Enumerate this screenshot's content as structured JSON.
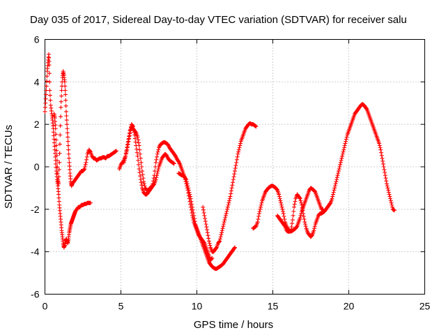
{
  "chart_data": {
    "type": "scatter",
    "title": "Day 035 of 2017, Sidereal Day-to-day VTEC variation (SDTVAR) for receiver salu",
    "xlabel": "GPS time / hours",
    "ylabel": "SDTVAR / TECUs",
    "xlim": [
      0,
      25
    ],
    "ylim": [
      -6,
      6
    ],
    "xticks": [
      0,
      5,
      10,
      15,
      20,
      25
    ],
    "yticks": [
      -6,
      -4,
      -2,
      0,
      2,
      4,
      6
    ],
    "grid": true,
    "marker": "plus",
    "color": "#ff0000",
    "series": [
      {
        "name": "SDTVAR",
        "x": [
          0.0,
          0.05,
          0.1,
          0.15,
          0.2,
          0.25,
          0.28,
          0.32,
          0.38,
          0.45,
          0.5,
          0.55,
          0.6,
          0.65,
          0.7,
          0.75,
          0.8,
          0.85,
          0.9,
          0.95,
          1.0,
          1.05,
          1.1,
          1.15,
          1.2,
          1.25,
          1.3,
          1.35,
          1.4,
          1.45,
          1.5,
          1.55,
          1.6,
          1.65,
          1.7,
          1.75,
          1.8,
          1.85,
          1.9,
          1.95,
          2.0,
          2.1,
          2.2,
          2.3,
          2.4,
          2.5,
          2.6,
          2.7,
          2.8,
          2.9,
          3.0
        ],
        "y": [
          2.6,
          3.2,
          3.8,
          4.5,
          4.9,
          5.3,
          4.8,
          3.6,
          2.9,
          2.5,
          2.2,
          1.8,
          1.3,
          0.8,
          0.3,
          -0.2,
          -0.6,
          -0.9,
          -1.3,
          -1.8,
          -2.2,
          -2.6,
          -3.0,
          -3.3,
          -3.6,
          -3.8,
          -3.7,
          -3.5,
          -3.4,
          -3.5,
          -3.6,
          -3.4,
          -3.1,
          -2.9,
          -2.7,
          -2.6,
          -2.5,
          -2.4,
          -2.3,
          -2.2,
          -2.1,
          -2.0,
          -1.9,
          -1.9,
          -1.8,
          -1.8,
          -1.75,
          -1.75,
          -1.7,
          -1.7,
          -1.7
        ]
      },
      {
        "name": "SDTVAR",
        "x": [
          0.6,
          0.65,
          0.7,
          0.75,
          0.8,
          0.85,
          0.9,
          0.95,
          1.0,
          1.05,
          1.1,
          1.15,
          1.2,
          1.25,
          1.3,
          1.35,
          1.4,
          1.45,
          1.5,
          1.55,
          1.6,
          1.65,
          1.7,
          1.75,
          1.8,
          1.9,
          2.0,
          2.1,
          2.2,
          2.3,
          2.4,
          2.5,
          2.6,
          2.7,
          2.8,
          2.9,
          3.0,
          3.1,
          3.2,
          3.3,
          3.4,
          3.5,
          3.6,
          3.7,
          3.8,
          3.9,
          4.0,
          4.1,
          4.2,
          4.3,
          4.4,
          4.5,
          4.6,
          4.7
        ],
        "y": [
          2.5,
          2.3,
          1.8,
          1.0,
          0.3,
          -0.6,
          -0.8,
          0.2,
          1.5,
          2.8,
          3.6,
          4.2,
          4.5,
          4.3,
          4.0,
          3.4,
          2.6,
          2.0,
          1.4,
          0.8,
          0.2,
          -0.3,
          -0.7,
          -0.9,
          -0.8,
          -0.7,
          -0.6,
          -0.5,
          -0.4,
          -0.3,
          -0.2,
          -0.2,
          -0.1,
          0.2,
          0.6,
          0.8,
          0.7,
          0.5,
          0.4,
          0.4,
          0.3,
          0.35,
          0.4,
          0.4,
          0.45,
          0.45,
          0.4,
          0.5,
          0.5,
          0.55,
          0.6,
          0.65,
          0.7,
          0.75
        ]
      },
      {
        "name": "SDTVAR",
        "x": [
          4.9,
          5.0,
          5.1,
          5.2,
          5.3,
          5.4,
          5.5,
          5.6,
          5.7,
          5.8,
          5.9,
          6.0,
          6.1,
          6.2,
          6.3,
          6.4,
          6.5,
          6.6,
          6.7,
          6.8,
          6.9,
          7.0,
          7.1,
          7.2,
          7.3,
          7.4,
          7.5,
          7.6,
          7.7,
          7.8,
          7.9,
          8.0,
          8.1,
          8.2,
          8.3,
          8.4,
          8.5,
          8.6,
          8.7,
          8.8,
          8.9,
          9.0,
          9.1,
          9.2,
          9.3,
          9.4,
          9.5,
          9.6,
          9.7,
          9.8,
          9.9,
          10.0,
          10.1,
          10.2,
          10.3,
          10.4,
          10.5,
          10.6,
          10.7,
          10.8,
          10.9,
          11.0
        ],
        "y": [
          -0.1,
          0.1,
          0.2,
          0.3,
          0.5,
          0.8,
          1.2,
          1.6,
          2.0,
          1.9,
          1.5,
          1.0,
          0.5,
          -0.1,
          -0.6,
          -1.0,
          -1.2,
          -1.3,
          -1.3,
          -1.2,
          -1.1,
          -1.0,
          -0.8,
          -0.4,
          0.2,
          0.6,
          0.9,
          1.05,
          1.1,
          1.15,
          1.15,
          1.1,
          1.05,
          0.9,
          0.8,
          0.7,
          0.6,
          0.5,
          0.35,
          0.25,
          0.1,
          -0.1,
          -0.3,
          -0.5,
          -0.8,
          -1.1,
          -1.5,
          -1.9,
          -2.3,
          -2.6,
          -2.8,
          -3.0,
          -3.2,
          -3.3,
          -3.4,
          -3.5,
          -3.6,
          -3.8,
          -4.0,
          -4.2,
          -4.4,
          -4.3
        ]
      },
      {
        "name": "SDTVAR",
        "x": [
          5.2,
          5.3,
          5.4,
          5.5,
          5.6,
          5.7,
          5.8,
          5.9,
          6.0,
          6.1,
          6.2,
          6.3,
          6.4,
          6.5,
          6.6,
          6.7,
          6.8,
          6.9,
          7.0,
          7.1,
          7.2,
          7.3,
          7.4,
          7.5,
          7.6,
          7.7,
          7.8,
          7.9,
          8.0,
          8.1,
          8.2,
          8.3,
          8.4,
          8.5
        ],
        "y": [
          0.2,
          0.5,
          0.9,
          1.3,
          1.7,
          1.9,
          1.8,
          1.7,
          1.6,
          1.4,
          1.0,
          0.4,
          -0.2,
          -0.7,
          -1.0,
          -1.1,
          -1.1,
          -1.0,
          -1.0,
          -0.9,
          -0.8,
          -0.6,
          -0.3,
          0.0,
          0.2,
          0.4,
          0.5,
          0.6,
          0.55,
          0.4,
          0.3,
          0.25,
          0.2,
          0.15
        ]
      },
      {
        "name": "SDTVAR",
        "x": [
          8.8,
          8.9,
          9.0,
          9.1,
          9.2,
          9.3,
          9.4,
          9.5,
          9.6,
          9.7,
          9.8,
          9.9,
          10.0,
          10.1,
          10.2,
          10.3,
          10.4,
          10.5,
          10.6,
          10.7,
          10.8,
          10.9,
          11.0,
          11.1,
          11.2,
          11.3,
          11.4,
          11.5,
          11.6,
          11.7,
          11.8,
          11.9,
          12.0,
          12.1,
          12.2,
          12.3,
          12.4,
          12.5
        ],
        "y": [
          -0.3,
          -0.35,
          -0.4,
          -0.4,
          -0.5,
          -0.6,
          -0.9,
          -1.2,
          -1.5,
          -1.9,
          -2.3,
          -2.7,
          -2.9,
          -3.1,
          -3.3,
          -3.5,
          -3.7,
          -3.9,
          -4.1,
          -4.3,
          -4.5,
          -4.6,
          -4.7,
          -4.75,
          -4.8,
          -4.8,
          -4.75,
          -4.7,
          -4.65,
          -4.6,
          -4.5,
          -4.4,
          -4.3,
          -4.2,
          -4.1,
          -4.0,
          -3.9,
          -3.8
        ]
      },
      {
        "name": "SDTVAR",
        "x": [
          10.4,
          10.5,
          10.6,
          10.7,
          10.8,
          10.9,
          11.0,
          11.1,
          11.2,
          11.3,
          11.4,
          11.5,
          11.6,
          11.7,
          11.8,
          11.9,
          12.0,
          12.1,
          12.2,
          12.3,
          12.4,
          12.5,
          12.6,
          12.7,
          12.8,
          12.9,
          13.0,
          13.1,
          13.2,
          13.3,
          13.4,
          13.5,
          13.6,
          13.7,
          13.8,
          13.9
        ],
        "y": [
          -1.9,
          -2.3,
          -2.7,
          -3.1,
          -3.5,
          -3.8,
          -4.0,
          -4.0,
          -3.9,
          -3.8,
          -3.6,
          -3.5,
          -3.2,
          -2.9,
          -2.6,
          -2.3,
          -2.0,
          -1.7,
          -1.4,
          -1.0,
          -0.6,
          -0.2,
          0.2,
          0.6,
          0.9,
          1.2,
          1.4,
          1.6,
          1.8,
          1.9,
          2.0,
          2.05,
          2.0,
          2.0,
          1.95,
          1.9
        ]
      },
      {
        "name": "SDTVAR",
        "x": [
          13.7,
          13.8,
          13.9,
          14.0,
          14.1,
          14.2,
          14.3,
          14.4,
          14.5,
          14.6,
          14.7,
          14.8,
          14.9,
          15.0,
          15.1,
          15.2,
          15.3,
          15.4,
          15.5,
          15.6,
          15.7,
          15.8,
          15.9,
          16.0,
          16.1,
          16.2,
          16.3,
          16.4,
          16.5,
          16.6,
          16.7,
          16.8,
          16.9,
          17.0,
          17.1,
          17.2,
          17.3,
          17.4,
          17.5,
          17.6,
          17.7,
          17.8,
          17.9,
          18.0,
          18.1,
          18.2,
          18.3
        ],
        "y": [
          -2.9,
          -2.85,
          -2.8,
          -2.6,
          -2.2,
          -1.9,
          -1.6,
          -1.4,
          -1.2,
          -1.1,
          -1.0,
          -0.95,
          -0.9,
          -0.9,
          -0.95,
          -1.0,
          -1.1,
          -1.3,
          -1.6,
          -1.9,
          -2.2,
          -2.6,
          -2.8,
          -2.95,
          -3.0,
          -3.05,
          -3.0,
          -2.95,
          -2.9,
          -2.8,
          -2.6,
          -2.4,
          -2.1,
          -1.9,
          -1.7,
          -1.5,
          -1.3,
          -1.1,
          -1.0,
          -1.05,
          -1.1,
          -1.2,
          -1.4,
          -1.6,
          -1.8,
          -2.0,
          -2.0
        ]
      },
      {
        "name": "SDTVAR",
        "x": [
          15.3,
          15.4,
          15.5,
          15.6,
          15.7,
          15.8,
          15.9,
          16.0,
          16.1,
          16.2,
          16.3,
          16.4,
          16.5,
          16.6,
          16.7,
          16.8,
          16.9,
          17.0,
          17.1,
          17.2,
          17.3,
          17.4,
          17.5,
          17.6,
          17.7,
          17.8,
          17.9,
          18.0,
          18.1,
          18.2,
          18.3,
          18.4,
          18.5,
          18.6,
          18.7,
          18.8,
          18.9,
          19.0,
          19.1,
          19.2,
          19.3,
          19.4,
          19.5,
          19.6,
          19.7,
          19.8,
          19.9,
          20.0,
          20.1,
          20.2,
          20.3,
          20.4,
          20.5,
          20.6,
          20.7,
          20.8,
          20.9,
          21.0,
          21.1,
          21.2,
          21.3,
          21.4,
          21.5,
          21.6,
          21.7,
          21.8,
          21.9,
          22.0,
          22.1,
          22.2,
          22.3,
          22.4,
          22.5,
          22.6,
          22.7,
          22.8,
          22.9,
          23.0
        ],
        "y": [
          -2.3,
          -2.4,
          -2.5,
          -2.6,
          -2.7,
          -2.8,
          -3.0,
          -3.05,
          -3.05,
          -3.0,
          -2.5,
          -1.9,
          -1.5,
          -1.3,
          -1.4,
          -1.5,
          -1.8,
          -2.2,
          -2.6,
          -2.9,
          -3.1,
          -3.2,
          -3.3,
          -3.2,
          -3.0,
          -2.7,
          -2.5,
          -2.3,
          -2.2,
          -2.2,
          -2.15,
          -2.1,
          -2.0,
          -1.9,
          -1.8,
          -1.7,
          -1.5,
          -1.2,
          -0.9,
          -0.6,
          -0.3,
          0.0,
          0.3,
          0.6,
          0.9,
          1.2,
          1.5,
          1.7,
          1.9,
          2.1,
          2.3,
          2.5,
          2.6,
          2.7,
          2.8,
          2.9,
          2.95,
          2.9,
          2.8,
          2.7,
          2.5,
          2.3,
          2.1,
          1.9,
          1.7,
          1.5,
          1.3,
          1.1,
          0.8,
          0.4,
          0.0,
          -0.4,
          -0.8,
          -1.1,
          -1.4,
          -1.7,
          -2.0,
          -2.05
        ]
      }
    ]
  }
}
